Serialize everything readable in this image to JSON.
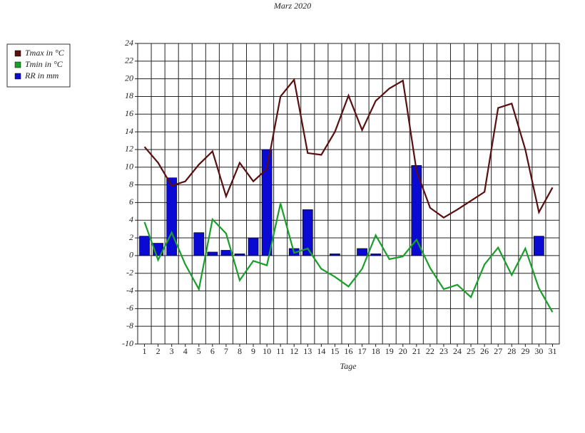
{
  "chart_data": {
    "type": "combo",
    "title": "Marz 2020",
    "x_label": "Tage",
    "categories": [
      "1",
      "2",
      "3",
      "4",
      "5",
      "6",
      "7",
      "8",
      "9",
      "10",
      "11",
      "12",
      "13",
      "14",
      "15",
      "16",
      "17",
      "18",
      "19",
      "20",
      "21",
      "22",
      "23",
      "24",
      "25",
      "26",
      "27",
      "28",
      "29",
      "30",
      "31"
    ],
    "series": [
      {
        "name": "Tmax in °C",
        "type": "line",
        "color": "#5a0f0f",
        "values": [
          12.3,
          10.5,
          7.9,
          8.4,
          10.3,
          11.8,
          6.7,
          10.5,
          8.4,
          9.8,
          18,
          19.9,
          11.6,
          11.4,
          14,
          18.1,
          14.2,
          17.5,
          18.9,
          19.8,
          9.6,
          5.4,
          4.3,
          5.2,
          6.2,
          7.2,
          16.7,
          17.2,
          12,
          4.9,
          7.7
        ]
      },
      {
        "name": "Tmin in °C",
        "type": "line",
        "color": "#1a9e2a",
        "values": [
          3.8,
          -0.5,
          2.6,
          -1,
          -3.8,
          4.1,
          2.5,
          -2.8,
          -0.6,
          -1.1,
          5.9,
          0.3,
          0.8,
          -1.5,
          -2.4,
          -3.5,
          -1.5,
          2.3,
          -0.4,
          -0.1,
          1.8,
          -1.4,
          -3.8,
          -3.3,
          -4.7,
          -1,
          0.9,
          -2.2,
          0.8,
          -3.7,
          -6.4
        ]
      },
      {
        "name": "RR in mm",
        "type": "bar",
        "color": "#0a0ad2",
        "values": [
          2.2,
          1.4,
          8.8,
          0,
          2.6,
          0.4,
          0.6,
          0.2,
          2,
          12,
          0,
          0.8,
          5.2,
          0,
          0.2,
          0,
          0.8,
          0.2,
          0,
          0,
          10.2,
          0,
          0,
          0,
          0,
          0,
          0,
          0,
          0,
          2.2,
          0
        ]
      }
    ],
    "ylim": [
      -10,
      24
    ],
    "yticks": [
      -10,
      -8,
      -6,
      -4,
      -2,
      0,
      2,
      4,
      6,
      8,
      10,
      12,
      14,
      16,
      18,
      20,
      22,
      24
    ],
    "grid": true,
    "legend_position": "left"
  }
}
